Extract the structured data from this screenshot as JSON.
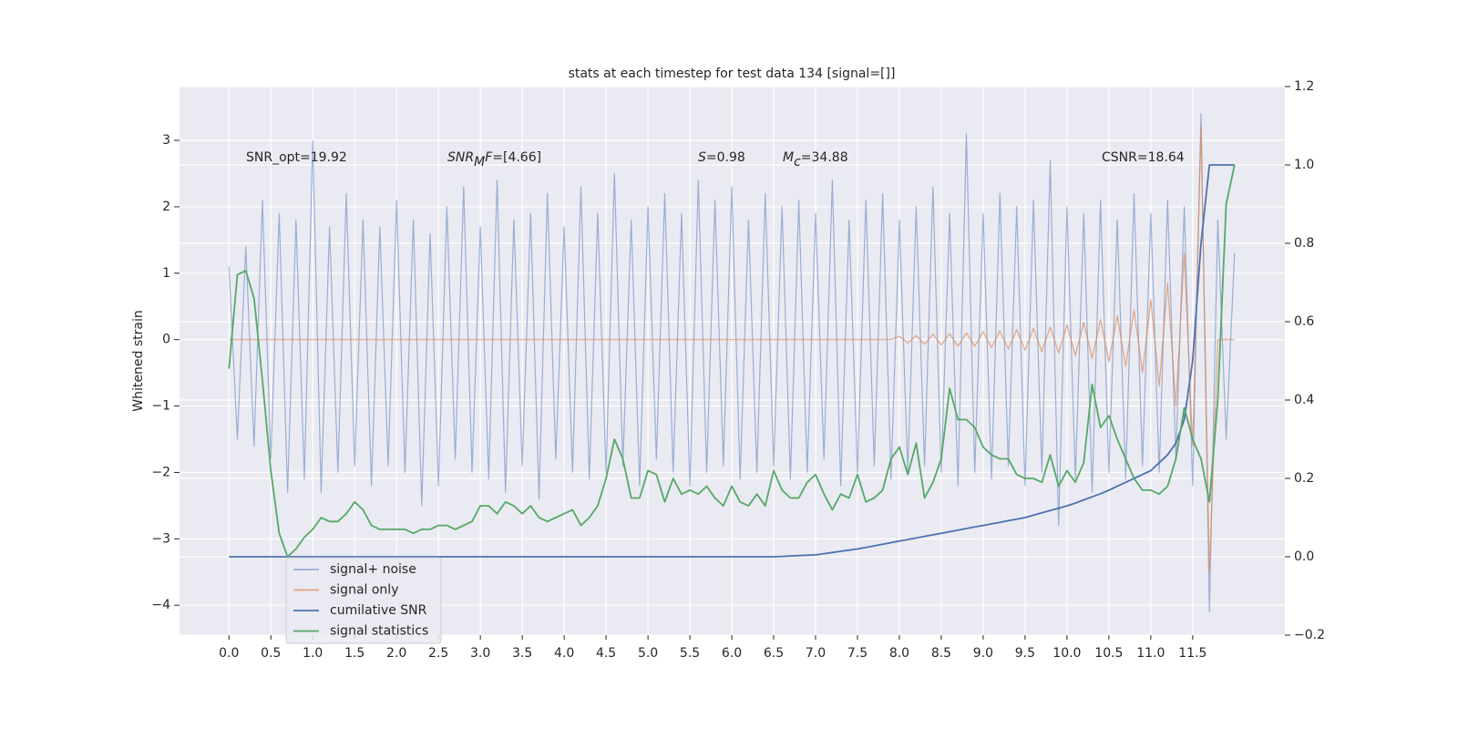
{
  "chart_data": {
    "type": "line",
    "title": "stats at each timestep for test data 134 [signal=[]]",
    "ylabel": "Whitened strain",
    "xlim": [
      -0.59,
      12.6
    ],
    "ylim": [
      -4.45,
      3.81
    ],
    "y2lim": [
      -0.2,
      1.2
    ],
    "xticks": [
      {
        "value": 0,
        "label": "0.0"
      },
      0.5,
      {
        "value": 1,
        "label": "1.0"
      },
      1.5,
      {
        "value": 2,
        "label": "2.0"
      },
      2.5,
      {
        "value": 3,
        "label": "3.0"
      },
      3.5,
      {
        "value": 4,
        "label": "4.0"
      },
      4.5,
      {
        "value": 5,
        "label": "5.0"
      },
      5.5,
      {
        "value": 6,
        "label": "6.0"
      },
      6.5,
      {
        "value": 7,
        "label": "7.0"
      },
      7.5,
      {
        "value": 8,
        "label": "8.0"
      },
      8.5,
      {
        "value": 9,
        "label": "9.0"
      },
      9.5,
      {
        "value": 10,
        "label": "10.0"
      },
      10.5,
      {
        "value": 11,
        "label": "11.0"
      },
      11.5
    ],
    "yticks": [
      {
        "value": -4,
        "label": "−4"
      },
      {
        "value": -3,
        "label": "−3"
      },
      {
        "value": -2,
        "label": "−2"
      },
      {
        "value": -1,
        "label": "−1"
      },
      0,
      1,
      2,
      3
    ],
    "y2ticks": [
      {
        "value": -0.2,
        "label": "−0.2"
      },
      {
        "value": 0,
        "label": "0.0"
      },
      0.2,
      0.4,
      0.6,
      0.8,
      {
        "value": 1,
        "label": "1.0"
      },
      1.2
    ],
    "grid": true,
    "legend": "lower left",
    "annotations": [
      [
        {
          "text": "SNR_opt=19.92"
        }
      ],
      [
        {
          "text": "SNR",
          "style": "italic"
        },
        {
          "text": "M",
          "style": "italic",
          "sub": true
        },
        {
          "text": "F",
          "style": "italic"
        },
        {
          "text": "=[4.66]"
        }
      ],
      [
        {
          "text": "S",
          "style": "italic"
        },
        {
          "text": "=0.98"
        }
      ],
      [
        {
          "text": "M",
          "style": "italic"
        },
        {
          "text": "c",
          "style": "italic",
          "sub": true
        },
        {
          "text": "=34.88"
        }
      ],
      [
        {
          "text": "CSNR=18.64"
        }
      ]
    ],
    "x": [
      0,
      0.1,
      0.2,
      0.3,
      0.4,
      0.5,
      0.6,
      0.7,
      0.8,
      0.9,
      1,
      1.1,
      1.2,
      1.3,
      1.4,
      1.5,
      1.6,
      1.7,
      1.8,
      1.9,
      2,
      2.1,
      2.2,
      2.3,
      2.4,
      2.5,
      2.6,
      2.7,
      2.8,
      2.9,
      3,
      3.1,
      3.2,
      3.3,
      3.4,
      3.5,
      3.6,
      3.7,
      3.8,
      3.9,
      4,
      4.1,
      4.2,
      4.3,
      4.4,
      4.5,
      4.6,
      4.7,
      4.8,
      4.9,
      5,
      5.1,
      5.2,
      5.3,
      5.4,
      5.5,
      5.6,
      5.7,
      5.8,
      5.9,
      6,
      6.1,
      6.2,
      6.3,
      6.4,
      6.5,
      6.6,
      6.7,
      6.8,
      6.9,
      7,
      7.1,
      7.2,
      7.3,
      7.4,
      7.5,
      7.6,
      7.7,
      7.8,
      7.9,
      8,
      8.1,
      8.2,
      8.3,
      8.4,
      8.5,
      8.6,
      8.7,
      8.8,
      8.9,
      9,
      9.1,
      9.2,
      9.3,
      9.4,
      9.5,
      9.6,
      9.7,
      9.8,
      9.9,
      10,
      10.1,
      10.2,
      10.3,
      10.4,
      10.5,
      10.6,
      10.7,
      10.8,
      10.9,
      11,
      11.1,
      11.2,
      11.3,
      11.4,
      11.5,
      11.6,
      11.7,
      11.8,
      11.9,
      12
    ],
    "series": [
      {
        "name": "signal+ noise",
        "color": "#4c72b0",
        "opacity": 0.5,
        "values": [
          1.1,
          -1.5,
          1.4,
          -1.6,
          2.1,
          -1.8,
          1.9,
          -2.3,
          1.8,
          -2.1,
          3.0,
          -2.3,
          1.7,
          -2.0,
          2.2,
          -1.9,
          1.8,
          -2.2,
          1.7,
          -1.9,
          2.1,
          -2.0,
          1.8,
          -2.5,
          1.6,
          -2.2,
          2.0,
          -1.8,
          2.3,
          -2.0,
          1.7,
          -2.1,
          2.4,
          -2.3,
          1.8,
          -1.9,
          1.9,
          -2.4,
          2.2,
          -1.8,
          1.7,
          -2.0,
          2.3,
          -2.1,
          1.9,
          -2.0,
          2.5,
          -1.9,
          1.8,
          -2.2,
          2.0,
          -1.8,
          2.2,
          -2.0,
          1.9,
          -2.2,
          2.4,
          -2.0,
          2.1,
          -1.9,
          2.3,
          -2.1,
          1.8,
          -2.0,
          2.2,
          -1.9,
          2.0,
          -2.1,
          2.1,
          -2.0,
          1.9,
          -1.8,
          2.4,
          -2.2,
          1.8,
          -2.0,
          2.1,
          -1.9,
          2.2,
          -2.1,
          1.8,
          -2.0,
          2.0,
          -1.9,
          2.3,
          -2.0,
          1.9,
          -2.2,
          3.1,
          -2.0,
          1.9,
          -2.1,
          2.2,
          -1.9,
          2.0,
          -2.2,
          2.1,
          -2.0,
          2.7,
          -2.8,
          2.0,
          -2.1,
          1.9,
          -2.3,
          2.1,
          -2.0,
          1.8,
          -2.1,
          2.2,
          -1.9,
          1.9,
          -2.0,
          2.1,
          -1.8,
          2.0,
          -2.2,
          3.4,
          -4.1,
          1.8,
          -1.5,
          1.3
        ]
      },
      {
        "name": "signal only",
        "color": "#dd8452",
        "opacity": 0.7,
        "values": [
          0,
          0,
          0,
          0,
          0,
          0,
          0,
          0,
          0,
          0,
          0,
          0,
          0,
          0,
          0,
          0,
          0,
          0,
          0,
          0,
          0,
          0,
          0,
          0,
          0,
          0,
          0,
          0,
          0,
          0,
          0,
          0,
          0,
          0,
          0,
          0,
          0,
          0,
          0,
          0,
          0,
          0,
          0,
          0,
          0,
          0,
          0,
          0,
          0,
          0,
          0,
          0,
          0,
          0,
          0,
          0,
          0,
          0,
          0,
          0,
          0,
          0,
          0,
          0,
          0,
          0,
          0,
          0,
          0,
          0,
          0,
          0,
          0,
          0,
          0,
          0,
          0,
          0,
          0,
          0,
          0.05,
          -0.05,
          0.06,
          -0.07,
          0.08,
          -0.08,
          0.09,
          -0.1,
          0.1,
          -0.1,
          0.12,
          -0.12,
          0.13,
          -0.14,
          0.15,
          -0.16,
          0.17,
          -0.18,
          0.19,
          -0.2,
          0.22,
          -0.24,
          0.26,
          -0.28,
          0.3,
          -0.33,
          0.36,
          -0.4,
          0.45,
          -0.5,
          0.6,
          -0.7,
          0.85,
          -1.0,
          1.3,
          -1.6,
          3.2,
          -3.5,
          0,
          0,
          0
        ]
      },
      {
        "name": "cumilative SNR",
        "color": "#4c72b0",
        "opacity": 1,
        "axis": "y2",
        "values": [
          0,
          0,
          0,
          0,
          0,
          0,
          0,
          0,
          0,
          0,
          0,
          0,
          0,
          0,
          0,
          0,
          0,
          0,
          0,
          0,
          0,
          0,
          0,
          0,
          0,
          0,
          0,
          0,
          0,
          0,
          0,
          0,
          0,
          0,
          0,
          0,
          0,
          0,
          0,
          0,
          0,
          0,
          0,
          0,
          0,
          0,
          0,
          0,
          0,
          0,
          0,
          0,
          0,
          0,
          0,
          0,
          0,
          0,
          0,
          0,
          0,
          0,
          0,
          0,
          0,
          0,
          0.001,
          0.002,
          0.003,
          0.004,
          0.005,
          0.008,
          0.011,
          0.014,
          0.017,
          0.02,
          0.024,
          0.028,
          0.032,
          0.036,
          0.04,
          0.044,
          0.048,
          0.052,
          0.056,
          0.06,
          0.064,
          0.068,
          0.072,
          0.076,
          0.08,
          0.084,
          0.088,
          0.092,
          0.096,
          0.1,
          0.106,
          0.112,
          0.118,
          0.124,
          0.13,
          0.137,
          0.145,
          0.153,
          0.161,
          0.17,
          0.18,
          0.19,
          0.2,
          0.21,
          0.22,
          0.24,
          0.26,
          0.29,
          0.35,
          0.5,
          0.8,
          1.0,
          1.0,
          1.0,
          1.0
        ]
      },
      {
        "name": "signal statistics",
        "color": "#55a868",
        "opacity": 1,
        "axis": "y2",
        "values": [
          0.48,
          0.72,
          0.73,
          0.66,
          0.45,
          0.22,
          0.06,
          0.0,
          0.02,
          0.05,
          0.07,
          0.1,
          0.09,
          0.09,
          0.11,
          0.14,
          0.12,
          0.08,
          0.07,
          0.07,
          0.07,
          0.07,
          0.06,
          0.07,
          0.07,
          0.08,
          0.08,
          0.07,
          0.08,
          0.09,
          0.13,
          0.13,
          0.11,
          0.14,
          0.13,
          0.11,
          0.13,
          0.1,
          0.09,
          0.1,
          0.11,
          0.12,
          0.08,
          0.1,
          0.13,
          0.2,
          0.3,
          0.25,
          0.15,
          0.15,
          0.22,
          0.21,
          0.14,
          0.2,
          0.16,
          0.17,
          0.16,
          0.18,
          0.15,
          0.13,
          0.18,
          0.14,
          0.13,
          0.16,
          0.13,
          0.22,
          0.17,
          0.15,
          0.15,
          0.19,
          0.21,
          0.16,
          0.12,
          0.16,
          0.15,
          0.21,
          0.14,
          0.15,
          0.17,
          0.25,
          0.28,
          0.21,
          0.29,
          0.15,
          0.19,
          0.25,
          0.43,
          0.35,
          0.35,
          0.33,
          0.28,
          0.26,
          0.25,
          0.25,
          0.21,
          0.2,
          0.2,
          0.19,
          0.26,
          0.18,
          0.22,
          0.19,
          0.24,
          0.44,
          0.33,
          0.36,
          0.3,
          0.25,
          0.2,
          0.17,
          0.17,
          0.16,
          0.18,
          0.25,
          0.38,
          0.3,
          0.25,
          0.14,
          0.4,
          0.9,
          1.0
        ]
      }
    ]
  }
}
